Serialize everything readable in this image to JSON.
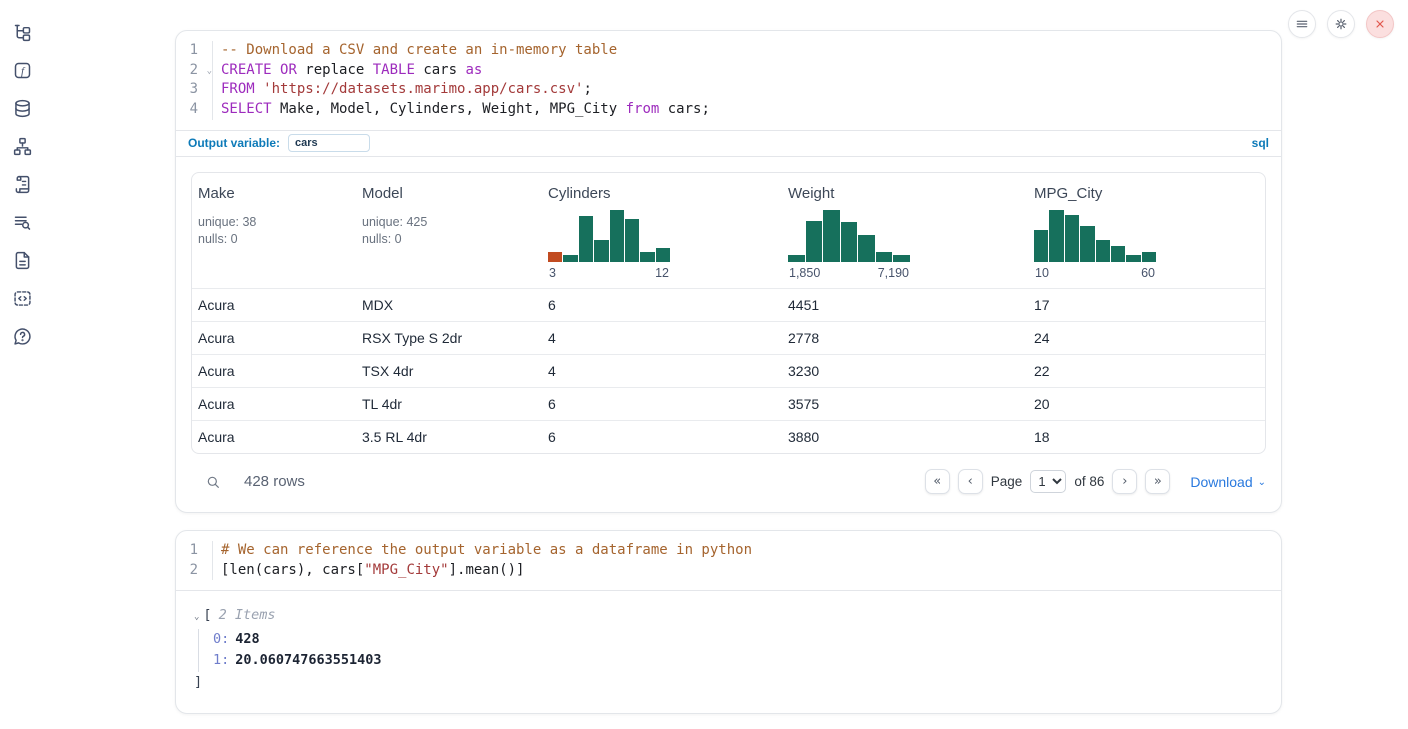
{
  "colors": {
    "accent_blue": "#0d7ab8",
    "link_blue": "#2979de",
    "hist_teal": "#16705c",
    "hist_orange": "#c14b21",
    "danger_red": "#e2574d"
  },
  "sidebar": {
    "icons": [
      "file-tree-icon",
      "function-icon",
      "database-icon",
      "dependency-graph-icon",
      "scroll-icon",
      "text-search-icon",
      "document-icon",
      "snippets-icon",
      "help-icon"
    ]
  },
  "topbar": {
    "buttons": [
      {
        "name": "menu-button",
        "icon": "menu"
      },
      {
        "name": "settings-button",
        "icon": "gear"
      },
      {
        "name": "shutdown-button",
        "icon": "close"
      }
    ]
  },
  "sql_cell": {
    "gutter": [
      {
        "num": "1"
      },
      {
        "num": "2",
        "fold": "⌄"
      },
      {
        "num": "3"
      },
      {
        "num": "4"
      }
    ],
    "lines": [
      [
        {
          "c": "com",
          "t": "-- Download a CSV and create an in-memory table"
        }
      ],
      [
        {
          "c": "kw",
          "t": "CREATE"
        },
        {
          "c": "pl",
          "t": " "
        },
        {
          "c": "kw",
          "t": "OR"
        },
        {
          "c": "pl",
          "t": " replace "
        },
        {
          "c": "kw",
          "t": "TABLE"
        },
        {
          "c": "pl",
          "t": " cars "
        },
        {
          "c": "kw",
          "t": "as"
        }
      ],
      [
        {
          "c": "kw",
          "t": "FROM"
        },
        {
          "c": "pl",
          "t": " "
        },
        {
          "c": "str",
          "t": "'https://datasets.marimo.app/cars.csv'"
        },
        {
          "c": "pl",
          "t": ";"
        }
      ],
      [
        {
          "c": "kw",
          "t": "SELECT"
        },
        {
          "c": "pl",
          "t": " Make, Model, Cylinders, Weight, MPG_City "
        },
        {
          "c": "kw",
          "t": "from"
        },
        {
          "c": "pl",
          "t": " cars;"
        }
      ]
    ],
    "footer": {
      "label": "Output variable:",
      "value": "cars",
      "lang": "sql"
    }
  },
  "table": {
    "columns": [
      {
        "name": "Make",
        "stats": [
          "unique: 38",
          "nulls: 0"
        ]
      },
      {
        "name": "Model",
        "stats": [
          "unique: 425",
          "nulls: 0"
        ]
      },
      {
        "name": "Cylinders",
        "hist": {
          "min": "3",
          "max": "12",
          "bars": [
            {
              "f": 0.2,
              "hl": true
            },
            {
              "f": 0.13
            },
            {
              "f": 0.88
            },
            {
              "f": 0.42
            },
            {
              "f": 1.0
            },
            {
              "f": 0.82
            },
            {
              "f": 0.2
            },
            {
              "f": 0.27
            }
          ]
        }
      },
      {
        "name": "Weight",
        "hist": {
          "min": "1,850",
          "max": "7,190",
          "bars": [
            {
              "f": 0.14
            },
            {
              "f": 0.78
            },
            {
              "f": 1.0
            },
            {
              "f": 0.76
            },
            {
              "f": 0.52
            },
            {
              "f": 0.2
            },
            {
              "f": 0.13
            }
          ]
        }
      },
      {
        "name": "MPG_City",
        "hist": {
          "min": "10",
          "max": "60",
          "bars": [
            {
              "f": 0.62
            },
            {
              "f": 1.0
            },
            {
              "f": 0.9
            },
            {
              "f": 0.7
            },
            {
              "f": 0.42
            },
            {
              "f": 0.3
            },
            {
              "f": 0.13
            },
            {
              "f": 0.2
            }
          ]
        }
      }
    ],
    "rows": [
      [
        "Acura",
        "MDX",
        "6",
        "4451",
        "17"
      ],
      [
        "Acura",
        "RSX Type S 2dr",
        "4",
        "2778",
        "24"
      ],
      [
        "Acura",
        "TSX 4dr",
        "4",
        "3230",
        "22"
      ],
      [
        "Acura",
        "TL 4dr",
        "6",
        "3575",
        "20"
      ],
      [
        "Acura",
        "3.5 RL 4dr",
        "6",
        "3880",
        "18"
      ]
    ],
    "footer": {
      "row_count": "428 rows",
      "page_label": "Page",
      "page_value": "1",
      "of_label": "of 86",
      "download_label": "Download"
    }
  },
  "py_cell": {
    "gutter": [
      {
        "num": "1"
      },
      {
        "num": "2"
      }
    ],
    "lines": [
      [
        {
          "c": "com",
          "t": "# We can reference the output variable as a dataframe in python"
        }
      ],
      [
        {
          "c": "pl",
          "t": "[len(cars), cars["
        },
        {
          "c": "str",
          "t": "\"MPG_City\""
        },
        {
          "c": "pl",
          "t": "].mean()]"
        }
      ]
    ]
  },
  "py_output": {
    "bracket_open": "[",
    "items_label": "2 Items",
    "entries": [
      {
        "key": "0:",
        "value": "428"
      },
      {
        "key": "1:",
        "value": "20.060747663551403"
      }
    ],
    "bracket_close": "]"
  }
}
